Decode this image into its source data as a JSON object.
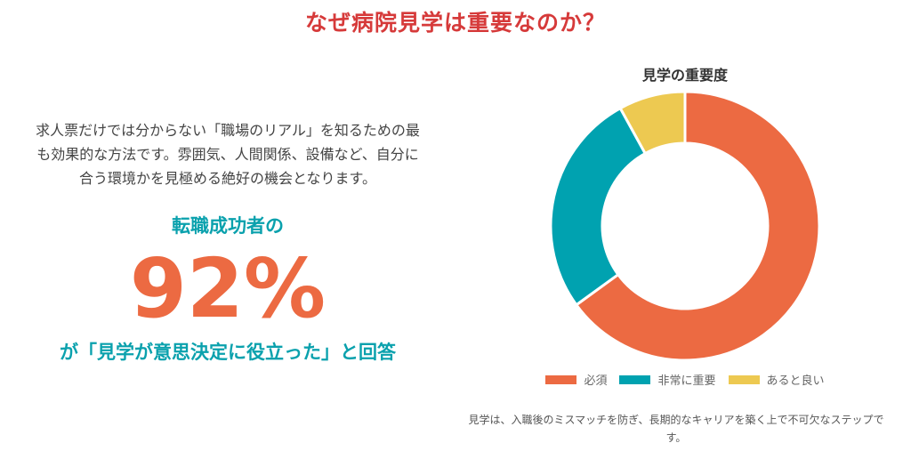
{
  "header": {
    "title": "なぜ病院見学は重要なのか？"
  },
  "left": {
    "description": [
      "求人票だけでは分からない「職場のリアル」を知るための最",
      "も効果的な方法です。雰囲気、人間関係、設備など、自分に",
      "合う環境かを見極める絶好の機会となります。"
    ],
    "lead": "転職成功者の",
    "stat": "92%",
    "tail": "が「見学が意思決定に役立った」と回答"
  },
  "chart_data": {
    "type": "pie",
    "variant": "donut",
    "title": "見学の重要度",
    "categories": [
      "必須",
      "非常に重要",
      "あると良い"
    ],
    "values": [
      65,
      27,
      8
    ],
    "colors": [
      "#ec6a42",
      "#00a2b0",
      "#edc951"
    ],
    "legend": "bottom"
  },
  "note": "見学は、入職後のミスマッチを防ぎ、長期的なキャリアを築く上で不可欠なステップです。"
}
